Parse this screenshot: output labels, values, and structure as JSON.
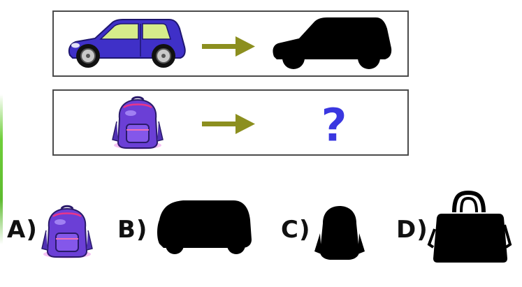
{
  "example": {
    "left_icon": "blue-car-icon",
    "arrow_icon": "olive-arrow-icon",
    "right_icon": "car-silhouette-icon"
  },
  "question": {
    "left_icon": "purple-backpack-icon",
    "arrow_icon": "olive-arrow-icon",
    "mark": "?"
  },
  "options": [
    {
      "label": "A)",
      "icon": "purple-backpack-icon"
    },
    {
      "label": "B)",
      "icon": "car-silhouette-icon"
    },
    {
      "label": "C)",
      "icon": "backpack-silhouette-icon"
    },
    {
      "label": "D)",
      "icon": "handbag-silhouette-icon"
    }
  ],
  "colors": {
    "panel_border": "#4b4b4b",
    "arrow": "#8c8f1f",
    "question_mark": "#3a37e0",
    "car_body": "#3f30c8",
    "backpack": "#6b3fd6",
    "silhouette": "#000000"
  }
}
